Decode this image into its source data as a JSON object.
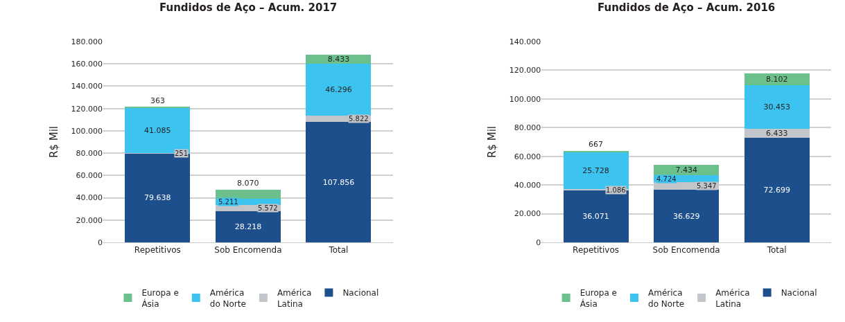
{
  "chart_data": [
    {
      "type": "bar",
      "title": "Fundidos de Aço – Acum. 2017",
      "ylabel": "R$ Mil",
      "stacked": true,
      "grid": "y",
      "legend": "bottom",
      "categories": [
        "Repetitivos",
        "Sob Encomenda",
        "Total"
      ],
      "series": [
        {
          "name": "Nacional",
          "color": "#1d4f8c",
          "values": [
            79638,
            28218,
            107856
          ],
          "value_labels": [
            "79.638",
            "28.218",
            "107.856"
          ]
        },
        {
          "name": "América Latina",
          "color": "#c2c6ca",
          "values": [
            251,
            5572,
            5822
          ],
          "value_labels": [
            "251",
            "5.572",
            "5.822"
          ]
        },
        {
          "name": "América do Norte",
          "color": "#3cc3ef",
          "values": [
            41085,
            5211,
            46296
          ],
          "value_labels": [
            "41.085",
            "5.211",
            "46.296"
          ]
        },
        {
          "name": "Europa e Ásia",
          "color": "#6cc08b",
          "values": [
            363,
            8070,
            8433
          ],
          "value_labels": [
            "363",
            "8.070",
            "8.433"
          ]
        }
      ],
      "ylim": [
        0,
        180000
      ],
      "yticks": [
        0,
        {
          "value": 20000,
          "label": "20.000"
        },
        {
          "value": 40000,
          "label": "40.000"
        },
        {
          "value": 60000,
          "label": "60.000"
        },
        {
          "value": 80000,
          "label": "80.000"
        },
        {
          "value": 100000,
          "label": "100.000"
        },
        {
          "value": 120000,
          "label": "120.000"
        },
        {
          "value": 140000,
          "label": "140.000"
        },
        {
          "value": 160000,
          "label": "160.000"
        },
        {
          "value": 180000,
          "label": "180.000"
        }
      ]
    },
    {
      "type": "bar",
      "title": "Fundidos de Aço – Acum. 2016",
      "ylabel": "R$ Mil",
      "stacked": true,
      "grid": "y",
      "legend": "bottom",
      "categories": [
        "Repetitivos",
        "Sob Encomenda",
        "Total"
      ],
      "series": [
        {
          "name": "Nacional",
          "color": "#1d4f8c",
          "values": [
            36071,
            36629,
            72699
          ],
          "value_labels": [
            "36.071",
            "36.629",
            "72.699"
          ]
        },
        {
          "name": "América Latina",
          "color": "#c2c6ca",
          "values": [
            1086,
            5347,
            6433
          ],
          "value_labels": [
            "1.086",
            "5.347",
            "6.433"
          ]
        },
        {
          "name": "América do Norte",
          "color": "#3cc3ef",
          "values": [
            25728,
            4724,
            30453
          ],
          "value_labels": [
            "25.728",
            "4.724",
            "30.453"
          ]
        },
        {
          "name": "Europa e Ásia",
          "color": "#6cc08b",
          "values": [
            667,
            7434,
            8102
          ],
          "value_labels": [
            "667",
            "7.434",
            "8.102"
          ]
        }
      ],
      "ylim": [
        0,
        140000
      ],
      "yticks": [
        0,
        {
          "value": 20000,
          "label": "20.000"
        },
        {
          "value": 40000,
          "label": "40.000"
        },
        {
          "value": 60000,
          "label": "60.000"
        },
        {
          "value": 80000,
          "label": "80.000"
        },
        {
          "value": 100000,
          "label": "100.000"
        },
        {
          "value": 120000,
          "label": "120.000"
        },
        {
          "value": 140000,
          "label": "140.000"
        }
      ]
    }
  ]
}
